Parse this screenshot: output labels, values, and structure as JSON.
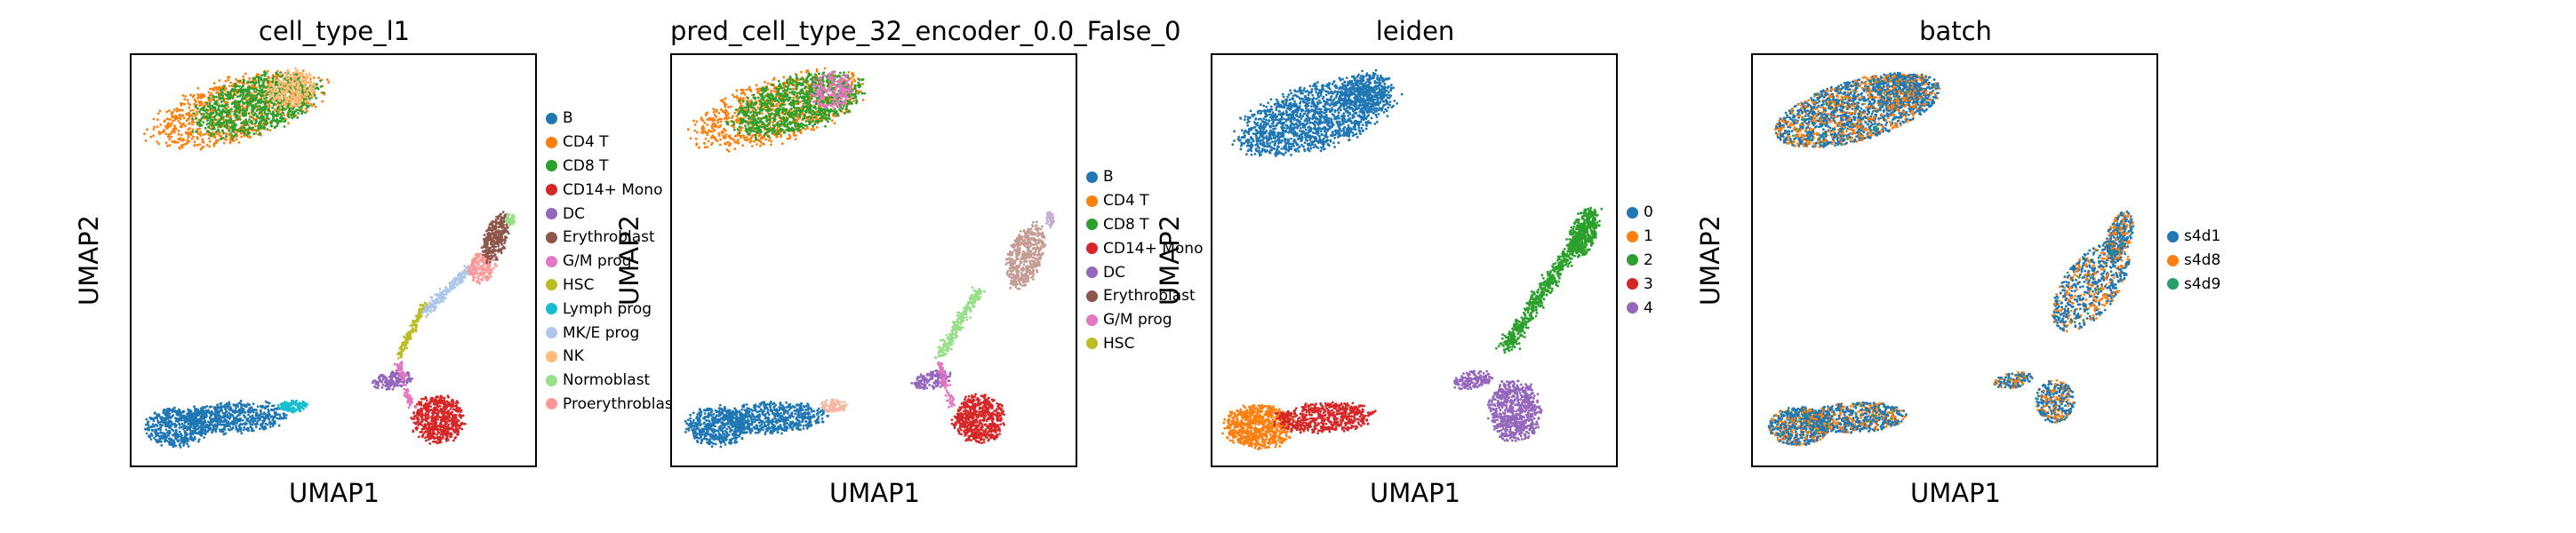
{
  "palettes": {
    "celltype": [
      "#1f77b4",
      "#ff7f0e",
      "#2ca02c",
      "#d62728",
      "#9467bd",
      "#8c564b",
      "#e377c2",
      "#bcbd22",
      "#17becf",
      "#aec7e8",
      "#ffbb78",
      "#98df8a",
      "#ff9896"
    ],
    "leiden": [
      "#1f77b4",
      "#ff7f0e",
      "#2ca02c",
      "#d62728",
      "#9467bd"
    ],
    "batch": [
      "#1f77b4",
      "#ff7f0e",
      "#279e68"
    ]
  },
  "chart_data": [
    {
      "type": "scatter",
      "title": "cell_type_l1",
      "xlabel": "UMAP1",
      "ylabel": "UMAP2",
      "grid": false,
      "legend_position": "right",
      "legend": [
        "B",
        "CD4 T",
        "CD8 T",
        "CD14+ Mono",
        "DC",
        "Erythroblast",
        "G/M prog",
        "HSC",
        "Lymph prog",
        "MK/E prog",
        "NK",
        "Normoblast",
        "Proerythroblast"
      ],
      "legend_display": [
        "B",
        "CD4 T",
        "CD8 T",
        "CD14+ Mono",
        "DC",
        "Erythroblast",
        "G/M prog",
        "HSC",
        "Lymph prog",
        "MK/E prog",
        "NK",
        "Normoblast",
        "Proerythroblas"
      ]
    },
    {
      "type": "scatter",
      "title": "pred_cell_type_32_encoder_0.0_False_0",
      "xlabel": "UMAP1",
      "ylabel": "UMAP2",
      "grid": false,
      "legend_position": "right",
      "legend": [
        "B",
        "CD4 T",
        "CD8 T",
        "CD14+ Mono",
        "DC",
        "Erythroblast",
        "G/M prog",
        "HSC"
      ],
      "legend_display": [
        "B",
        "CD4 T",
        "CD8 T",
        "CD14+ Mono",
        "DC",
        "Erythroblast",
        "G/M prog",
        "HSC"
      ]
    },
    {
      "type": "scatter",
      "title": "leiden",
      "xlabel": "UMAP1",
      "ylabel": "UMAP2",
      "grid": false,
      "legend_position": "right",
      "legend": [
        "0",
        "1",
        "2",
        "3",
        "4"
      ],
      "legend_display": [
        "0",
        "1",
        "2",
        "3",
        "4"
      ]
    },
    {
      "type": "scatter",
      "title": "batch",
      "xlabel": "UMAP1",
      "ylabel": "UMAP2",
      "grid": false,
      "legend_position": "right",
      "legend": [
        "s4d1",
        "s4d8",
        "s4d9"
      ],
      "legend_display": [
        "s4d1",
        "s4d8",
        "s4d9"
      ]
    }
  ]
}
